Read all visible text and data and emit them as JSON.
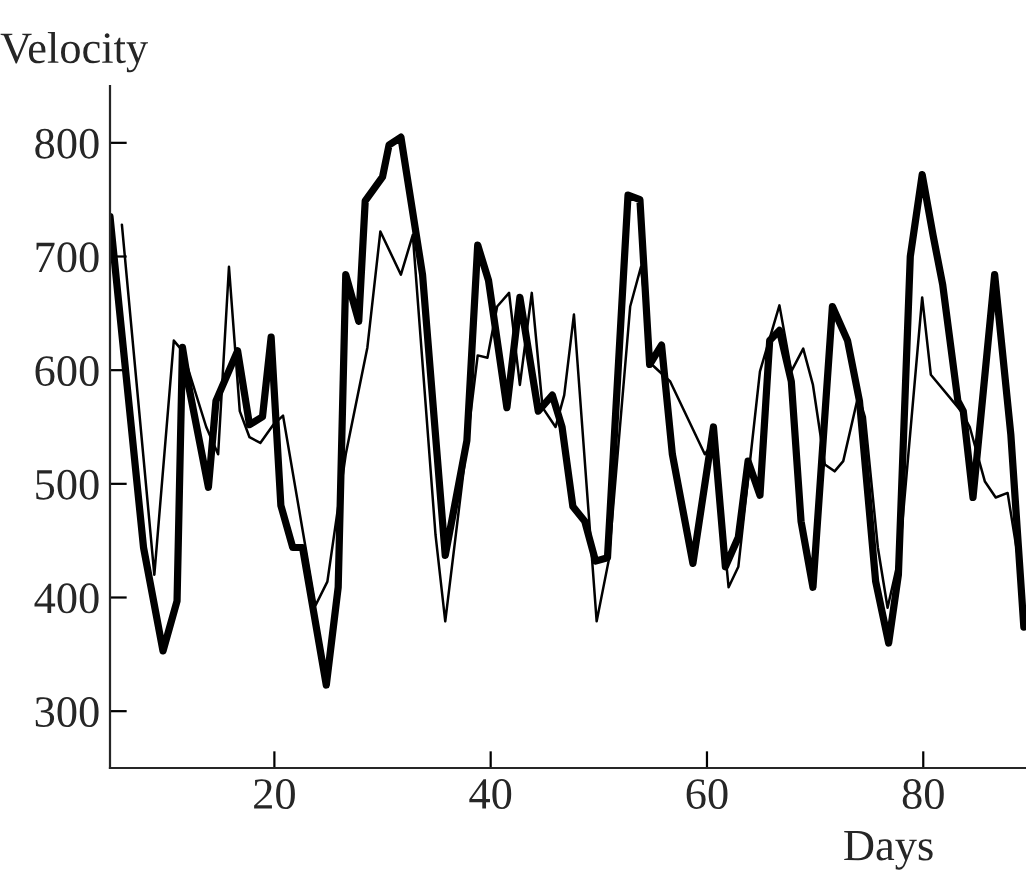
{
  "chart_data": {
    "type": "line",
    "xlabel": "Days",
    "ylabel": "Velocity",
    "xlim": [
      4.8,
      89.5
    ],
    "ylim": [
      250,
      850
    ],
    "xticks": [
      20,
      40,
      60,
      80
    ],
    "yticks": [
      300,
      400,
      500,
      600,
      700,
      800
    ],
    "grid": false,
    "legend": false,
    "marker": "none",
    "line_style": "solid",
    "series": [
      {
        "color": "#000000",
        "x": [
          4.8,
          7.9,
          9.7,
          11,
          11.5,
          12.1,
          13.9,
          14.6,
          16.6,
          17.7,
          18.9,
          19.7,
          20.6,
          21.7,
          22.6,
          24.8,
          25.9,
          26.6,
          27.8,
          28.4,
          30,
          30.6,
          31.7,
          33.7,
          35.8,
          37.8,
          38.8,
          39.8,
          41.5,
          42.7,
          44.4,
          45.7,
          46.6,
          47.6,
          48.7,
          49.7,
          50.8,
          52.7,
          53.8,
          54.7,
          55.8,
          56.8,
          58.7,
          60.6,
          61.7,
          62.9,
          63.8,
          64.9,
          65.8,
          66.7,
          67.8,
          68.7,
          69.8,
          71.6,
          73,
          74.1,
          75.6,
          76.8,
          77.7,
          78.8,
          79.9,
          80.9,
          81.8,
          83.2,
          83.7,
          84.6,
          86.6,
          88.1,
          89.3
        ],
        "values": [
          735,
          444,
          353,
          397,
          620,
          585,
          497,
          573,
          617,
          552,
          559,
          629,
          481,
          444,
          444,
          323,
          409,
          684,
          643,
          749,
          770,
          798,
          805,
          684,
          437,
          538,
          710,
          679,
          567,
          664,
          564,
          578,
          550,
          480,
          467,
          432,
          435,
          754,
          750,
          605,
          622,
          526,
          430,
          550,
          427,
          453,
          520,
          490,
          626,
          635,
          590,
          467,
          409,
          656,
          626,
          573,
          414,
          360,
          420,
          700,
          772,
          719,
          675,
          573,
          564,
          488,
          684,
          543,
          374
        ]
      },
      {
        "color": "#000000",
        "x": [
          5.9,
          8.9,
          10.7,
          11.5,
          13.7,
          14.8,
          15.8,
          16.8,
          17.7,
          18.7,
          19.9,
          20.8,
          23.8,
          24.9,
          26.6,
          28.6,
          29.8,
          31.7,
          32.8,
          34.9,
          35.8,
          38.8,
          39.7,
          40.6,
          41.7,
          42.7,
          43.8,
          44.8,
          46,
          46.8,
          47.7,
          49.8,
          50.9,
          52.9,
          53.9,
          54.9,
          56.6,
          59.8,
          60.7,
          62,
          62.9,
          64.9,
          66.7,
          67.8,
          68.9,
          69.8,
          70.9,
          71.8,
          72.6,
          74,
          74.6,
          75.8,
          76.7,
          77.8,
          79.9,
          80.7,
          83.5,
          84.3,
          85.7,
          86.7,
          87.8,
          89.2
        ],
        "values": [
          728,
          420,
          626,
          617,
          550,
          526,
          691,
          564,
          541,
          536,
          552,
          560,
          393,
          414,
          526,
          620,
          722,
          684,
          719,
          455,
          379,
          613,
          611,
          656,
          668,
          587,
          668,
          567,
          550,
          578,
          649,
          379,
          432,
          656,
          691,
          605,
          590,
          526,
          538,
          409,
          427,
          599,
          657,
          599,
          619,
          587,
          517,
          511,
          520,
          578,
          559,
          444,
          391,
          437,
          664,
          596,
          564,
          550,
          502,
          488,
          492,
          409
        ]
      }
    ]
  }
}
